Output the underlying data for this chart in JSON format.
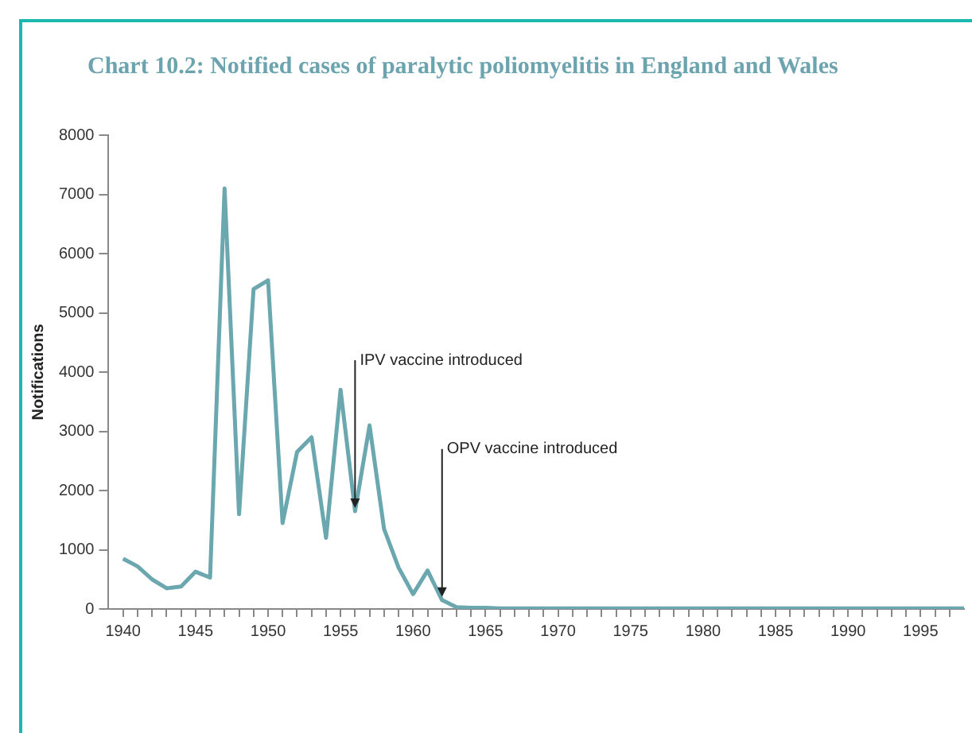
{
  "chart_data": {
    "type": "line",
    "title": "Chart 10.2: Notified cases of paralytic poliomyelitis in England and Wales",
    "ylabel": "Notifications",
    "color": "#6aa7ae",
    "x": [
      1940,
      1941,
      1942,
      1943,
      1944,
      1945,
      1946,
      1947,
      1948,
      1949,
      1950,
      1951,
      1952,
      1953,
      1954,
      1955,
      1956,
      1957,
      1958,
      1959,
      1960,
      1961,
      1962,
      1963,
      1964,
      1965,
      1966,
      1967,
      1968,
      1969,
      1970,
      1971,
      1972,
      1973,
      1974,
      1975,
      1976,
      1977,
      1978,
      1979,
      1980,
      1981,
      1982,
      1983,
      1984,
      1985,
      1986,
      1987,
      1988,
      1989,
      1990,
      1991,
      1992,
      1993,
      1994,
      1995,
      1996,
      1997,
      1998
    ],
    "values": [
      850,
      720,
      500,
      350,
      380,
      630,
      530,
      7100,
      1600,
      5400,
      5550,
      1450,
      2650,
      2900,
      1200,
      3700,
      1650,
      3100,
      1350,
      700,
      250,
      650,
      150,
      30,
      20,
      20,
      10,
      10,
      10,
      10,
      10,
      10,
      10,
      10,
      10,
      10,
      10,
      10,
      10,
      10,
      10,
      10,
      10,
      10,
      10,
      10,
      10,
      10,
      10,
      10,
      10,
      10,
      10,
      10,
      10,
      10,
      10,
      10,
      10
    ],
    "xlim": [
      1939,
      1998
    ],
    "xticks": [
      {
        "value": 1940,
        "label": "1940"
      },
      {
        "value": 1941,
        "label": null
      },
      {
        "value": 1942,
        "label": null
      },
      {
        "value": 1943,
        "label": null
      },
      {
        "value": 1944,
        "label": null
      },
      {
        "value": 1945,
        "label": "1945"
      },
      {
        "value": 1946,
        "label": null
      },
      {
        "value": 1947,
        "label": null
      },
      {
        "value": 1948,
        "label": null
      },
      {
        "value": 1949,
        "label": null
      },
      {
        "value": 1950,
        "label": "1950"
      },
      {
        "value": 1951,
        "label": null
      },
      {
        "value": 1952,
        "label": null
      },
      {
        "value": 1953,
        "label": null
      },
      {
        "value": 1954,
        "label": null
      },
      {
        "value": 1955,
        "label": "1955"
      },
      {
        "value": 1956,
        "label": null
      },
      {
        "value": 1957,
        "label": null
      },
      {
        "value": 1958,
        "label": null
      },
      {
        "value": 1959,
        "label": null
      },
      {
        "value": 1960,
        "label": "1960"
      },
      {
        "value": 1961,
        "label": null
      },
      {
        "value": 1962,
        "label": null
      },
      {
        "value": 1963,
        "label": null
      },
      {
        "value": 1964,
        "label": null
      },
      {
        "value": 1965,
        "label": "1965"
      },
      {
        "value": 1966,
        "label": null
      },
      {
        "value": 1967,
        "label": null
      },
      {
        "value": 1968,
        "label": null
      },
      {
        "value": 1969,
        "label": null
      },
      {
        "value": 1970,
        "label": "1970"
      },
      {
        "value": 1971,
        "label": null
      },
      {
        "value": 1972,
        "label": null
      },
      {
        "value": 1973,
        "label": null
      },
      {
        "value": 1974,
        "label": null
      },
      {
        "value": 1975,
        "label": "1975"
      },
      {
        "value": 1976,
        "label": null
      },
      {
        "value": 1977,
        "label": null
      },
      {
        "value": 1978,
        "label": null
      },
      {
        "value": 1979,
        "label": null
      },
      {
        "value": 1980,
        "label": "1980"
      },
      {
        "value": 1981,
        "label": null
      },
      {
        "value": 1982,
        "label": null
      },
      {
        "value": 1983,
        "label": null
      },
      {
        "value": 1984,
        "label": null
      },
      {
        "value": 1985,
        "label": "1985"
      },
      {
        "value": 1986,
        "label": null
      },
      {
        "value": 1987,
        "label": null
      },
      {
        "value": 1988,
        "label": null
      },
      {
        "value": 1989,
        "label": null
      },
      {
        "value": 1990,
        "label": "1990"
      },
      {
        "value": 1991,
        "label": null
      },
      {
        "value": 1992,
        "label": null
      },
      {
        "value": 1993,
        "label": null
      },
      {
        "value": 1994,
        "label": null
      },
      {
        "value": 1995,
        "label": "1995"
      },
      {
        "value": 1996,
        "label": null
      },
      {
        "value": 1997,
        "label": null
      }
    ],
    "ylim": [
      0,
      8000
    ],
    "yticks": [
      0,
      1000,
      2000,
      3000,
      4000,
      5000,
      6000,
      7000,
      8000
    ],
    "annotations": [
      {
        "text": "IPV vaccine introduced",
        "x": 1956,
        "y": 1650
      },
      {
        "text": "OPV vaccine introduced",
        "x": 1962,
        "y": 150
      }
    ],
    "grid": false,
    "legend": false,
    "marker": "none",
    "line_style": "solid"
  }
}
